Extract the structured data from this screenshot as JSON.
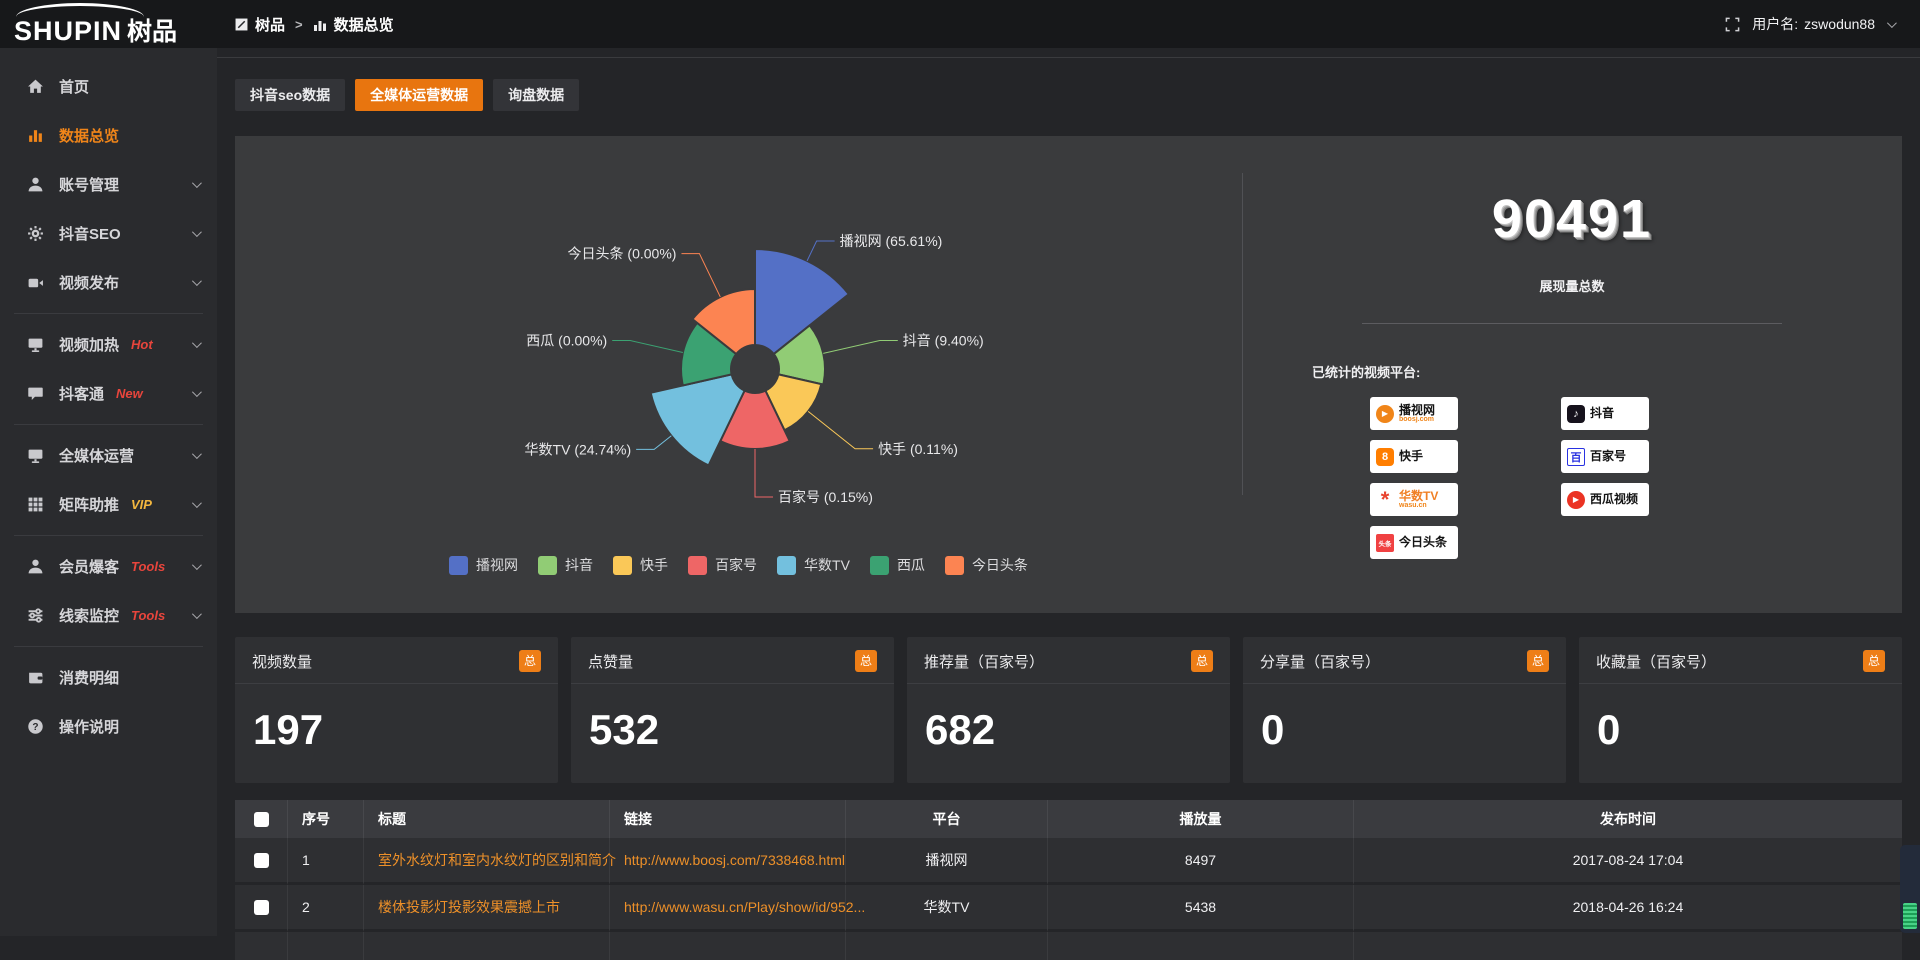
{
  "colors": {
    "accent": "#ee7e17",
    "badge_hot": "#e8453c",
    "badge_vip": "#f3b73f",
    "table_link": "#ed9029",
    "panel_bg": "#3a3b3d"
  },
  "topbar": {
    "logo": {
      "en": "SHUPIN",
      "cn": "树品"
    },
    "breadcrumb": {
      "root": "树品",
      "separator": ">",
      "current": "数据总览"
    },
    "user": {
      "label": "用户名:",
      "name": "zswodun88"
    }
  },
  "sidebar": {
    "items": [
      {
        "label": "首页"
      },
      {
        "label": "数据总览"
      },
      {
        "label": "账号管理"
      },
      {
        "label": "抖音SEO"
      },
      {
        "label": "视频发布"
      },
      {
        "label": "视频加热",
        "badge": "Hot"
      },
      {
        "label": "抖客通",
        "badge": "New"
      },
      {
        "label": "全媒体运营"
      },
      {
        "label": "矩阵助推",
        "badge": "VIP"
      },
      {
        "label": "会员爆客",
        "badge": "Tools"
      },
      {
        "label": "线索监控",
        "badge": "Tools"
      },
      {
        "label": "消费明细"
      },
      {
        "label": "操作说明"
      }
    ]
  },
  "tabs": {
    "items": [
      {
        "label": "抖音seo数据"
      },
      {
        "label": "全媒体运营数据"
      },
      {
        "label": "询盘数据"
      }
    ]
  },
  "overview": {
    "total_value": "90491",
    "total_label": "展现量总数",
    "platforms_heading": "已统计的视频平台:"
  },
  "platforms": [
    {
      "name": "播视网",
      "sub": "boosj.com",
      "logo": "boosj-play-icon",
      "logo_glyph": "▶",
      "logo_color": "#f08519"
    },
    {
      "name": "快手",
      "logo": "kuaishou-icon",
      "logo_glyph": "8",
      "logo_color": "#ff7e00"
    },
    {
      "name": "华数TV",
      "sub": "wasu.cn",
      "logo": "wasu-star-icon",
      "logo_glyph": "*",
      "logo_color": "#e8432e",
      "name_color": "#f08025"
    },
    {
      "name": "今日头条",
      "logo": "toutiao-icon",
      "logo_glyph": "头条",
      "logo_color": "#f04142"
    },
    {
      "name": "抖音",
      "logo": "douyin-note-icon",
      "logo_glyph": "♪",
      "logo_color": "#16121c"
    },
    {
      "name": "百家号",
      "logo": "baijiahao-icon",
      "logo_glyph": "百",
      "logo_color": "#2932e1"
    },
    {
      "name": "西瓜视频",
      "logo": "xigua-play-icon",
      "logo_glyph": "▶",
      "logo_color": "#eb3323"
    }
  ],
  "cards": [
    {
      "title": "视频数量",
      "badge": "总",
      "value": "197"
    },
    {
      "title": "点赞量",
      "badge": "总",
      "value": "532"
    },
    {
      "title": "推荐量（百家号）",
      "badge": "总",
      "value": "682"
    },
    {
      "title": "分享量（百家号）",
      "badge": "总",
      "value": "0"
    },
    {
      "title": "收藏量（百家号）",
      "badge": "总",
      "value": "0"
    }
  ],
  "table": {
    "headers": {
      "index": "序号",
      "title": "标题",
      "link": "链接",
      "platform": "平台",
      "views": "播放量",
      "time": "发布时间"
    },
    "rows": [
      {
        "index": "1",
        "title": "室外水纹灯和室内水纹灯的区别和简介",
        "link": "http://www.boosj.com/7338468.html",
        "platform": "播视网",
        "views": "8497",
        "time": "2017-08-24 17:04"
      },
      {
        "index": "2",
        "title": "楼体投影灯投影效果震撼上市",
        "link": "http://www.wasu.cn/Play/show/id/952...",
        "platform": "华数TV",
        "views": "5438",
        "time": "2018-04-26 16:24"
      }
    ]
  },
  "chart_data": {
    "type": "pie",
    "variant": "nightingale-rose",
    "title": "",
    "slices": [
      {
        "label": "播视网",
        "value_pct": 65.61,
        "display": "播视网 (65.61%)",
        "color": "#5470c6"
      },
      {
        "label": "抖音",
        "value_pct": 9.4,
        "display": "抖音 (9.40%)",
        "color": "#91cc75"
      },
      {
        "label": "快手",
        "value_pct": 0.11,
        "display": "快手 (0.11%)",
        "color": "#fac858"
      },
      {
        "label": "百家号",
        "value_pct": 0.15,
        "display": "百家号 (0.15%)",
        "color": "#ee6666"
      },
      {
        "label": "华数TV",
        "value_pct": 24.74,
        "display": "华数TV (24.74%)",
        "color": "#73c0de"
      },
      {
        "label": "西瓜",
        "value_pct": 0.0,
        "display": "西瓜 (0.00%)",
        "color": "#3ba272"
      },
      {
        "label": "今日头条",
        "value_pct": 0.0,
        "display": "今日头条 (0.00%)",
        "color": "#fc8452"
      }
    ],
    "legend": {
      "position": "bottom",
      "labels": [
        "播视网",
        "抖音",
        "快手",
        "百家号",
        "华数TV",
        "西瓜",
        "今日头条"
      ]
    },
    "layout": {
      "equal_angles": true,
      "start_angle_deg": 0,
      "clockwise": true,
      "center": [
        520,
        233
      ],
      "inner_radius": 24,
      "outer_radii": [
        120,
        70,
        68,
        80,
        107,
        74,
        80
      ],
      "label_radius": 128
    }
  }
}
